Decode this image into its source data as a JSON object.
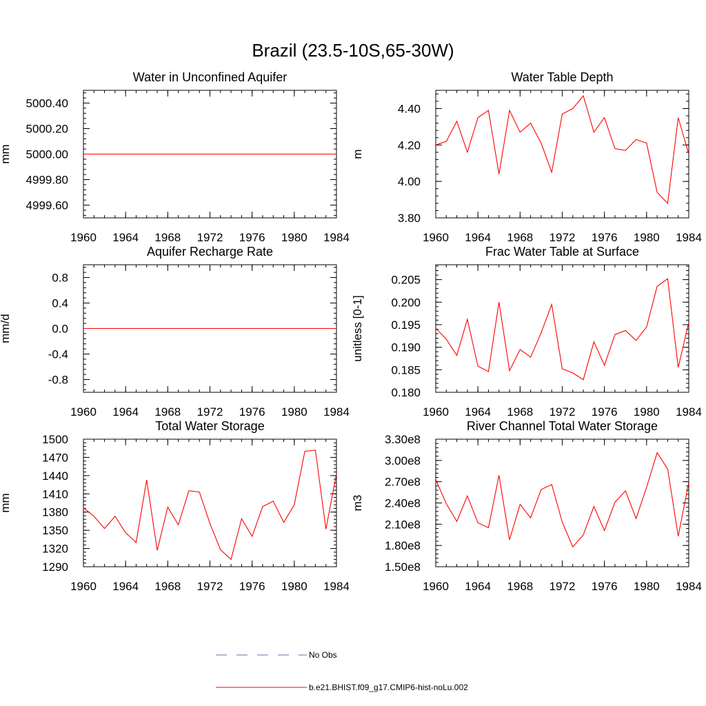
{
  "figure": {
    "title": "Brazil (23.5-10S,65-30W)"
  },
  "legend": {
    "entries": [
      {
        "label": "No Obs",
        "style": "dashed",
        "color": "#6a6ab0"
      },
      {
        "label": "b.e21.BHIST.f09_g17.CMIP6-hist-noLu.002",
        "style": "solid",
        "color": "#ff0000"
      }
    ]
  },
  "chart_data": [
    {
      "type": "line",
      "title": "Water in Unconfined Aquifer",
      "xlabel": "",
      "ylabel": "mm",
      "xlim": [
        1960,
        1984
      ],
      "ylim": [
        4999.5,
        5000.5
      ],
      "xticks": [
        "1960",
        "1964",
        "1968",
        "1972",
        "1976",
        "1980",
        "1984"
      ],
      "yticks": [
        {
          "value": 4999.6,
          "label": "4999.60"
        },
        {
          "value": 4999.8,
          "label": "4999.80"
        },
        {
          "value": 5000.0,
          "label": "5000.00"
        },
        {
          "value": 5000.2,
          "label": "5000.20"
        },
        {
          "value": 5000.4,
          "label": "5000.40"
        }
      ],
      "yminor_step": 0.04,
      "x": [
        1960,
        1961,
        1962,
        1963,
        1964,
        1965,
        1966,
        1967,
        1968,
        1969,
        1970,
        1971,
        1972,
        1973,
        1974,
        1975,
        1976,
        1977,
        1978,
        1979,
        1980,
        1981,
        1982,
        1983,
        1984
      ],
      "series": [
        {
          "color": "#ff0000",
          "values": [
            5000,
            5000,
            5000,
            5000,
            5000,
            5000,
            5000,
            5000,
            5000,
            5000,
            5000,
            5000,
            5000,
            5000,
            5000,
            5000,
            5000,
            5000,
            5000,
            5000,
            5000,
            5000,
            5000,
            5000,
            5000
          ]
        }
      ]
    },
    {
      "type": "line",
      "title": "Water Table Depth",
      "xlabel": "",
      "ylabel": "m",
      "xlim": [
        1960,
        1984
      ],
      "ylim": [
        3.8,
        4.5
      ],
      "xticks": [
        "1960",
        "1964",
        "1968",
        "1972",
        "1976",
        "1980",
        "1984"
      ],
      "yticks": [
        {
          "value": 3.8,
          "label": "3.80"
        },
        {
          "value": 4.0,
          "label": "4.00"
        },
        {
          "value": 4.2,
          "label": "4.20"
        },
        {
          "value": 4.4,
          "label": "4.40"
        }
      ],
      "yminor_step": 0.04,
      "x": [
        1960,
        1961,
        1962,
        1963,
        1964,
        1965,
        1966,
        1967,
        1968,
        1969,
        1970,
        1971,
        1972,
        1973,
        1974,
        1975,
        1976,
        1977,
        1978,
        1979,
        1980,
        1981,
        1982,
        1983,
        1984
      ],
      "series": [
        {
          "color": "#ff0000",
          "values": [
            4.2,
            4.22,
            4.33,
            4.16,
            4.35,
            4.39,
            4.04,
            4.39,
            4.27,
            4.32,
            4.21,
            4.05,
            4.37,
            4.4,
            4.47,
            4.27,
            4.35,
            4.18,
            4.17,
            4.23,
            4.21,
            3.94,
            3.88,
            4.35,
            4.15
          ]
        }
      ]
    },
    {
      "type": "line",
      "title": "Aquifer Recharge Rate",
      "xlabel": "",
      "ylabel": "mm/d",
      "xlim": [
        1960,
        1984
      ],
      "ylim": [
        -1.0,
        1.0
      ],
      "xticks": [
        "1960",
        "1964",
        "1968",
        "1972",
        "1976",
        "1980",
        "1984"
      ],
      "yticks": [
        {
          "value": -0.8,
          "label": "-0.8"
        },
        {
          "value": -0.4,
          "label": "-0.4"
        },
        {
          "value": 0.0,
          "label": "0.0"
        },
        {
          "value": 0.4,
          "label": "0.4"
        },
        {
          "value": 0.8,
          "label": "0.8"
        }
      ],
      "yminor_step": 0.08,
      "x": [
        1960,
        1961,
        1962,
        1963,
        1964,
        1965,
        1966,
        1967,
        1968,
        1969,
        1970,
        1971,
        1972,
        1973,
        1974,
        1975,
        1976,
        1977,
        1978,
        1979,
        1980,
        1981,
        1982,
        1983,
        1984
      ],
      "series": [
        {
          "color": "#ff0000",
          "values": [
            0,
            0,
            0,
            0,
            0,
            0,
            0,
            0,
            0,
            0,
            0,
            0,
            0,
            0,
            0,
            0,
            0,
            0,
            0,
            0,
            0,
            0,
            0,
            0,
            0
          ]
        }
      ]
    },
    {
      "type": "line",
      "title": "Frac Water Table at Surface",
      "xlabel": "",
      "ylabel": "unitless [0-1]",
      "xlim": [
        1960,
        1984
      ],
      "ylim": [
        0.18,
        0.2083
      ],
      "xticks": [
        "1960",
        "1964",
        "1968",
        "1972",
        "1976",
        "1980",
        "1984"
      ],
      "yticks": [
        {
          "value": 0.18,
          "label": "0.180"
        },
        {
          "value": 0.185,
          "label": "0.185"
        },
        {
          "value": 0.19,
          "label": "0.190"
        },
        {
          "value": 0.195,
          "label": "0.195"
        },
        {
          "value": 0.2,
          "label": "0.200"
        },
        {
          "value": 0.205,
          "label": "0.205"
        }
      ],
      "yminor_step": 0.001,
      "x": [
        1960,
        1961,
        1962,
        1963,
        1964,
        1965,
        1966,
        1967,
        1968,
        1969,
        1970,
        1971,
        1972,
        1973,
        1974,
        1975,
        1976,
        1977,
        1978,
        1979,
        1980,
        1981,
        1982,
        1983,
        1984
      ],
      "series": [
        {
          "color": "#ff0000",
          "values": [
            0.1942,
            0.1918,
            0.1882,
            0.1962,
            0.1858,
            0.1846,
            0.2,
            0.1848,
            0.1895,
            0.1878,
            0.1932,
            0.1995,
            0.1852,
            0.1843,
            0.1828,
            0.1912,
            0.186,
            0.1928,
            0.1937,
            0.1915,
            0.1945,
            0.2035,
            0.2052,
            0.1855,
            0.1955
          ]
        }
      ]
    },
    {
      "type": "line",
      "title": "Total Water Storage",
      "xlabel": "",
      "ylabel": "mm",
      "xlim": [
        1960,
        1984
      ],
      "ylim": [
        1290,
        1500
      ],
      "xticks": [
        "1960",
        "1964",
        "1968",
        "1972",
        "1976",
        "1980",
        "1984"
      ],
      "yticks": [
        {
          "value": 1290,
          "label": "1290"
        },
        {
          "value": 1320,
          "label": "1320"
        },
        {
          "value": 1350,
          "label": "1350"
        },
        {
          "value": 1380,
          "label": "1380"
        },
        {
          "value": 1410,
          "label": "1410"
        },
        {
          "value": 1440,
          "label": "1440"
        },
        {
          "value": 1470,
          "label": "1470"
        },
        {
          "value": 1500,
          "label": "1500"
        }
      ],
      "yminor_step": 6,
      "x": [
        1960,
        1961,
        1962,
        1963,
        1964,
        1965,
        1966,
        1967,
        1968,
        1969,
        1970,
        1971,
        1972,
        1973,
        1974,
        1975,
        1976,
        1977,
        1978,
        1979,
        1980,
        1981,
        1982,
        1983,
        1984
      ],
      "series": [
        {
          "color": "#ff0000",
          "values": [
            1387,
            1373,
            1353,
            1373,
            1346,
            1330,
            1433,
            1317,
            1388,
            1359,
            1415,
            1413,
            1361,
            1318,
            1302,
            1369,
            1340,
            1389,
            1398,
            1363,
            1392,
            1480,
            1482,
            1352,
            1443
          ]
        }
      ]
    },
    {
      "type": "line",
      "title": "River Channel Total Water Storage",
      "xlabel": "",
      "ylabel": "m3",
      "xlim": [
        1960,
        1984
      ],
      "ylim": [
        150000000,
        330000000
      ],
      "xticks": [
        "1960",
        "1964",
        "1968",
        "1972",
        "1976",
        "1980",
        "1984"
      ],
      "yticks": [
        {
          "value": 150000000,
          "label": "1.50e8"
        },
        {
          "value": 180000000,
          "label": "1.80e8"
        },
        {
          "value": 210000000,
          "label": "2.10e8"
        },
        {
          "value": 240000000,
          "label": "2.40e8"
        },
        {
          "value": 270000000,
          "label": "2.70e8"
        },
        {
          "value": 300000000,
          "label": "3.00e8"
        },
        {
          "value": 330000000,
          "label": "3.30e8"
        }
      ],
      "yminor_step": 6000000,
      "x": [
        1960,
        1961,
        1962,
        1963,
        1964,
        1965,
        1966,
        1967,
        1968,
        1969,
        1970,
        1971,
        1972,
        1973,
        1974,
        1975,
        1976,
        1977,
        1978,
        1979,
        1980,
        1981,
        1982,
        1983,
        1984
      ],
      "series": [
        {
          "color": "#ff0000",
          "values": [
            273000000,
            239000000,
            214000000,
            250000000,
            212000000,
            205000000,
            279000000,
            188000000,
            238000000,
            219000000,
            259000000,
            266000000,
            213000000,
            178000000,
            195000000,
            235000000,
            201000000,
            241000000,
            257000000,
            218000000,
            262000000,
            311000000,
            288000000,
            193000000,
            269000000
          ]
        }
      ]
    }
  ]
}
